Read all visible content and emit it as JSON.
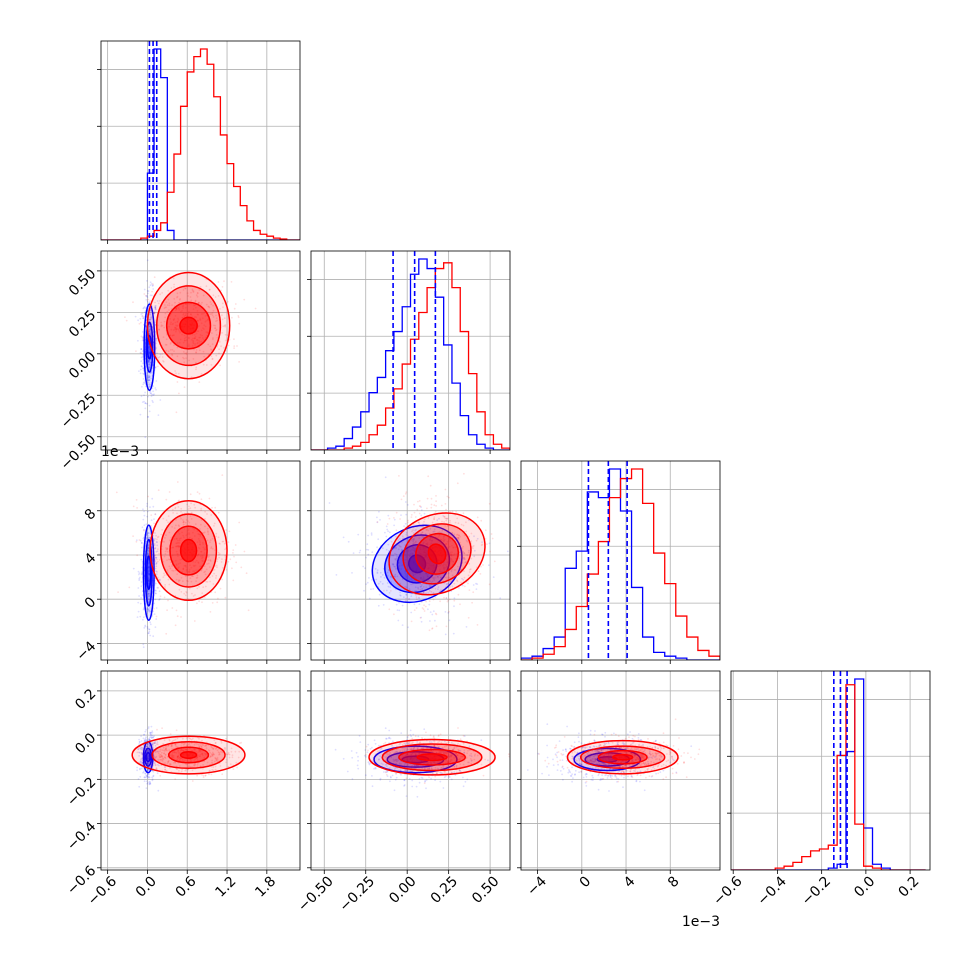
{
  "chart_data": {
    "type": "corner",
    "grid": true,
    "series": [
      {
        "name": "",
        "color": "#0000ff"
      },
      {
        "name": "",
        "color": "#ff0000"
      }
    ],
    "quantile_line_color": "#0000ff",
    "parameters": [
      {
        "range": [
          -0.7,
          2.3
        ],
        "ticks": [
          -0.6,
          0.0,
          0.6,
          1.2,
          1.8
        ],
        "tick_labels": [
          "−0.6",
          "0.0",
          "0.6",
          "1.2",
          "1.8"
        ],
        "offset_label": ""
      },
      {
        "range": [
          -0.58,
          0.62
        ],
        "ticks": [
          -0.5,
          -0.25,
          0.0,
          0.25,
          0.5
        ],
        "tick_labels": [
          "−0.50",
          "−0.25",
          "0.00",
          "0.25",
          "0.50"
        ],
        "offset_label": ""
      },
      {
        "range": [
          -5.5,
          12.5
        ],
        "ticks": [
          -4,
          0,
          4,
          8
        ],
        "tick_labels": [
          "−4",
          "0",
          "4",
          "8"
        ],
        "offset_label": "1e−3"
      },
      {
        "range": [
          -0.61,
          0.29
        ],
        "ticks": [
          -0.6,
          -0.4,
          -0.2,
          0.0,
          0.2
        ],
        "tick_labels": [
          "−0.6",
          "−0.4",
          "−0.2",
          "0.0",
          "0.2"
        ],
        "offset_label": ""
      }
    ],
    "marginals": [
      {
        "bin_edges": [
          -0.7,
          -0.6,
          -0.5,
          -0.4,
          -0.3,
          -0.2,
          -0.1,
          0.0,
          0.1,
          0.2,
          0.3,
          0.4,
          0.5,
          0.6,
          0.7,
          0.8,
          0.9,
          1.0,
          1.1,
          1.2,
          1.3,
          1.4,
          1.5,
          1.6,
          1.7,
          1.8,
          1.9,
          2.0,
          2.1,
          2.2,
          2.3
        ],
        "counts": [
          [
            0,
            0,
            0,
            0,
            0,
            0,
            0,
            0.35,
            1.0,
            0.85,
            0.05,
            0,
            0,
            0,
            0,
            0,
            0,
            0,
            0,
            0,
            0,
            0,
            0,
            0,
            0,
            0,
            0,
            0,
            0,
            0
          ],
          [
            0,
            0,
            0,
            0,
            0,
            0,
            0.01,
            0.02,
            0.05,
            0.09,
            0.25,
            0.45,
            0.7,
            0.88,
            0.96,
            1.0,
            0.92,
            0.75,
            0.55,
            0.4,
            0.28,
            0.18,
            0.1,
            0.05,
            0.03,
            0.02,
            0.01,
            0.005,
            0,
            0
          ]
        ],
        "quantiles": [
          0.03,
          0.085,
          0.14
        ]
      },
      {
        "bin_edges": [
          -0.58,
          -0.53,
          -0.48,
          -0.43,
          -0.38,
          -0.33,
          -0.28,
          -0.23,
          -0.18,
          -0.13,
          -0.08,
          -0.03,
          0.02,
          0.07,
          0.12,
          0.17,
          0.22,
          0.27,
          0.32,
          0.37,
          0.42,
          0.47,
          0.52,
          0.57,
          0.62
        ],
        "counts": [
          [
            0,
            0,
            0.01,
            0.02,
            0.06,
            0.12,
            0.2,
            0.3,
            0.38,
            0.52,
            0.62,
            0.75,
            0.92,
            1.0,
            0.95,
            0.8,
            0.55,
            0.35,
            0.18,
            0.08,
            0.03,
            0.01,
            0,
            0
          ],
          [
            0,
            0,
            0,
            0,
            0.01,
            0.02,
            0.04,
            0.08,
            0.13,
            0.22,
            0.32,
            0.45,
            0.58,
            0.72,
            0.85,
            0.95,
            0.98,
            0.85,
            0.62,
            0.4,
            0.2,
            0.08,
            0.03,
            0.01
          ]
        ],
        "quantiles": [
          -0.085,
          0.045,
          0.17
        ]
      },
      {
        "bin_edges": [
          -5.5,
          -4.5,
          -3.5,
          -2.5,
          -1.5,
          -0.5,
          0.5,
          1.5,
          2.5,
          3.5,
          4.5,
          5.5,
          6.5,
          7.5,
          8.5,
          9.5,
          10.5,
          11.5,
          12.5
        ],
        "counts": [
          [
            0.01,
            0.02,
            0.06,
            0.12,
            0.48,
            0.57,
            0.88,
            0.85,
            1.0,
            0.78,
            0.38,
            0.12,
            0.04,
            0.02,
            0.01,
            0,
            0,
            0
          ],
          [
            0,
            0.01,
            0.03,
            0.07,
            0.16,
            0.28,
            0.45,
            0.62,
            0.85,
            0.95,
            1.0,
            0.82,
            0.56,
            0.4,
            0.23,
            0.12,
            0.05,
            0.02
          ]
        ],
        "quantiles": [
          0.6,
          2.4,
          4.1
        ]
      },
      {
        "bin_edges": [
          -0.61,
          -0.57,
          -0.53,
          -0.49,
          -0.45,
          -0.41,
          -0.37,
          -0.33,
          -0.29,
          -0.25,
          -0.21,
          -0.17,
          -0.13,
          -0.09,
          -0.05,
          -0.01,
          0.03,
          0.07,
          0.11,
          0.15,
          0.19,
          0.23,
          0.27
        ],
        "counts": [
          [
            0,
            0,
            0,
            0,
            0,
            0,
            0,
            0,
            0,
            0,
            0,
            0.01,
            0.03,
            0.62,
            1.0,
            0.22,
            0.03,
            0.01,
            0,
            0,
            0,
            0
          ],
          [
            0,
            0,
            0,
            0,
            0,
            0.01,
            0.02,
            0.04,
            0.07,
            0.1,
            0.11,
            0.13,
            0.6,
            0.97,
            0.24,
            0.02,
            0.01,
            0,
            0,
            0,
            0,
            0
          ]
        ],
        "quantiles": [
          -0.145,
          -0.115,
          -0.085
        ]
      }
    ],
    "series_stats": [
      {
        "mean": [
          0.08,
          0.05,
          2.4,
          -0.1
        ],
        "sd": [
          0.06,
          0.16,
          2.3,
          0.05
        ]
      },
      {
        "mean": [
          0.72,
          0.16,
          4.1,
          -0.1
        ],
        "sd": [
          0.32,
          0.13,
          2.5,
          0.04
        ]
      }
    ],
    "contours": [
      {
        "row": 1,
        "col": 0,
        "series": [
          {
            "center": [
              0.03,
              0.04
            ],
            "radii": [
              [
                0.03,
                0.07
              ],
              [
                0.05,
                0.15
              ],
              [
                0.08,
                0.26
              ]
            ],
            "angle": 0
          },
          {
            "center": [
              0.62,
              0.17
            ],
            "radii": [
              [
                0.13,
                0.05
              ],
              [
                0.33,
                0.14
              ],
              [
                0.48,
                0.24
              ],
              [
                0.62,
                0.32
              ]
            ],
            "angle": 0
          }
        ]
      },
      {
        "row": 2,
        "col": 0,
        "series": [
          {
            "center": [
              0.02,
              2.4
            ],
            "radii": [
              [
                0.03,
                1.5
              ],
              [
                0.05,
                3.0
              ],
              [
                0.08,
                4.3
              ]
            ],
            "angle": 0
          },
          {
            "center": [
              0.62,
              4.4
            ],
            "radii": [
              [
                0.12,
                1.0
              ],
              [
                0.28,
                2.2
              ],
              [
                0.42,
                3.3
              ],
              [
                0.58,
                4.5
              ]
            ],
            "angle": 0
          }
        ]
      },
      {
        "row": 2,
        "col": 1,
        "series": [
          {
            "center": [
              0.06,
              3.2
            ],
            "radii": [
              [
                0.05,
                0.8
              ],
              [
                0.12,
                1.7
              ],
              [
                0.2,
                2.5
              ],
              [
                0.28,
                3.3
              ]
            ],
            "angle": 25
          },
          {
            "center": [
              0.18,
              4.1
            ],
            "radii": [
              [
                0.05,
                0.9
              ],
              [
                0.13,
                1.8
              ],
              [
                0.21,
                2.6
              ],
              [
                0.3,
                3.5
              ]
            ],
            "angle": 25
          }
        ]
      },
      {
        "row": 3,
        "col": 0,
        "series": [
          {
            "center": [
              0.01,
              -0.1
            ],
            "radii": [
              [
                0.03,
                0.02
              ],
              [
                0.05,
                0.04
              ],
              [
                0.07,
                0.07
              ]
            ],
            "angle": 0
          },
          {
            "center": [
              0.62,
              -0.09
            ],
            "radii": [
              [
                0.12,
                0.015
              ],
              [
                0.3,
                0.035
              ],
              [
                0.55,
                0.06
              ],
              [
                0.85,
                0.085
              ]
            ],
            "angle": 0
          }
        ]
      },
      {
        "row": 3,
        "col": 1,
        "series": [
          {
            "center": [
              0.05,
              -0.11
            ],
            "radii": [
              [
                0.08,
                0.015
              ],
              [
                0.17,
                0.035
              ],
              [
                0.25,
                0.06
              ]
            ],
            "angle": 0
          },
          {
            "center": [
              0.15,
              -0.1
            ],
            "radii": [
              [
                0.09,
                0.015
              ],
              [
                0.2,
                0.035
              ],
              [
                0.3,
                0.06
              ],
              [
                0.38,
                0.08
              ]
            ],
            "angle": 0
          }
        ]
      },
      {
        "row": 3,
        "col": 2,
        "series": [
          {
            "center": [
              2.3,
              -0.11
            ],
            "radii": [
              [
                0.9,
                0.012
              ],
              [
                2.0,
                0.03
              ],
              [
                3.0,
                0.05
              ]
            ],
            "angle": 0
          },
          {
            "center": [
              3.7,
              -0.1
            ],
            "radii": [
              [
                0.9,
                0.012
              ],
              [
                2.2,
                0.03
              ],
              [
                3.8,
                0.05
              ],
              [
                5.0,
                0.075
              ]
            ],
            "angle": 0
          }
        ]
      }
    ]
  }
}
